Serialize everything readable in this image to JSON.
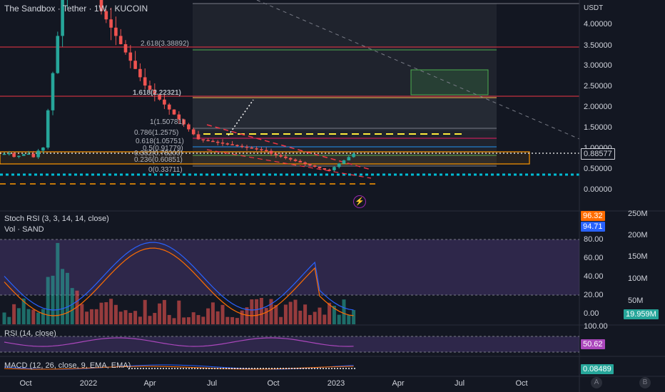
{
  "header": {
    "title": "The Sandbox · Tether · 1W · KUCOIN"
  },
  "price_axis": {
    "unit": "USDT",
    "labels": [
      "4.00000",
      "3.50000",
      "3.00000",
      "2.50000",
      "2.00000",
      "1.50000",
      "1.00000",
      "0.50000",
      "0.00000"
    ],
    "current_price": "0.88577"
  },
  "fib_levels": [
    {
      "label": "1.618(2.22321)",
      "color": "#ffb74d"
    },
    {
      "label": "1(1.50781)",
      "color": "#787b86"
    },
    {
      "label": "0.786(1.2575)",
      "color": "#e91e63"
    },
    {
      "label": "0.618(1.05751)",
      "color": "#2196f3"
    },
    {
      "label": "0.5(0.91779)",
      "color": "#4caf50"
    },
    {
      "label": "0.382(0.78200)",
      "color": "#f44336"
    },
    {
      "label": "0.236(0.60851)",
      "color": "#787b86"
    },
    {
      "label": "0(0.33711)",
      "color": "#787b86"
    },
    {
      "label": "2.618(3.38892)",
      "color": "#4caf50"
    }
  ],
  "indicators": {
    "stoch_rsi": {
      "label": "Stoch RSI (3, 3, 14, 14, close)",
      "k_value": "96.32",
      "d_value": "94.71",
      "levels": [
        "80.00",
        "60.00",
        "40.00",
        "20.00",
        "0.00"
      ]
    },
    "volume": {
      "label": "Vol · SAND",
      "value": "19.959M",
      "levels": [
        "250M",
        "200M",
        "150M",
        "100M",
        "50M"
      ]
    },
    "rsi": {
      "label": "RSI (14, close)",
      "value": "50.62",
      "top_level": "100.00"
    },
    "macd": {
      "label": "MACD (12, 26, close, 9, EMA, EMA)",
      "value": "0.08489"
    }
  },
  "time_axis": [
    "Oct",
    "2022",
    "Apr",
    "Jul",
    "Oct",
    "2023",
    "Apr",
    "Jul",
    "Oct"
  ],
  "scale_buttons": [
    "A",
    "B"
  ],
  "colors": {
    "bg": "#131722",
    "up": "#26a69a",
    "down": "#ef5350",
    "grid": "#2a2e39"
  },
  "chart_data": {
    "type": "candlestick",
    "title": "The Sandbox · Tether · 1W · KUCOIN",
    "ylabel": "USDT",
    "ylim": [
      0,
      4.5
    ],
    "x": [
      "2021-08",
      "2021-09",
      "2021-10",
      "2021-11",
      "2021-12",
      "2022-01",
      "2022-02",
      "2022-03",
      "2022-04",
      "2022-05",
      "2022-06",
      "2022-07",
      "2022-08",
      "2022-09",
      "2022-10",
      "2022-11",
      "2022-12",
      "2023-01",
      "2023-02"
    ],
    "close": [
      0.8,
      0.7,
      1.1,
      6.0,
      5.5,
      4.2,
      3.4,
      3.0,
      2.6,
      1.4,
      1.2,
      1.3,
      1.1,
      0.85,
      0.8,
      0.6,
      0.42,
      0.75,
      0.88
    ]
  }
}
